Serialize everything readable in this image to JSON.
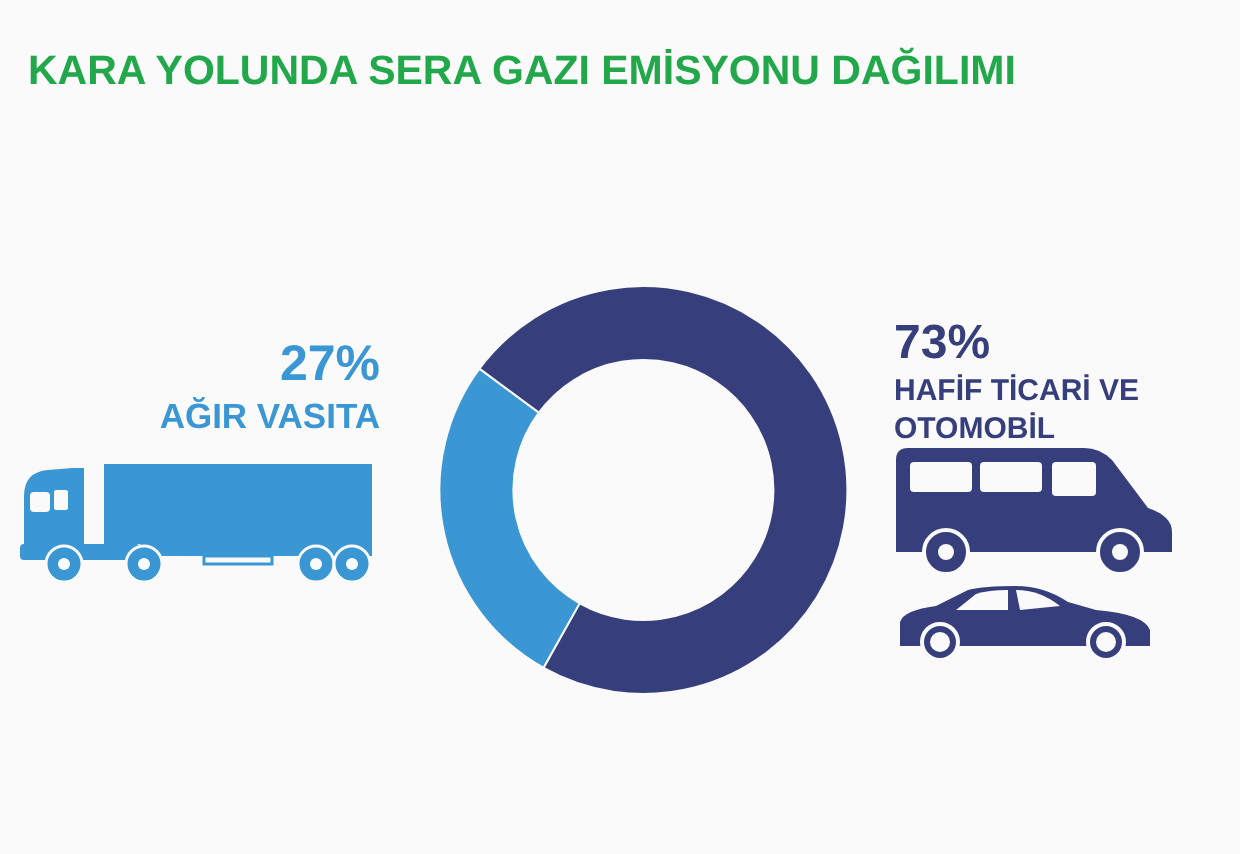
{
  "chart_data": {
    "type": "donut",
    "title": "KARA YOLUNDA SERA GAZI EMİSYONU DAĞILIMI",
    "categories": [
      "AĞIR VASITA",
      "HAFİF TİCARİ VE OTOMOBİL"
    ],
    "values": [
      27,
      73
    ],
    "colors": [
      "#3a97d3",
      "#363f7b"
    ],
    "value_labels": [
      "27%",
      "73%"
    ]
  }
}
